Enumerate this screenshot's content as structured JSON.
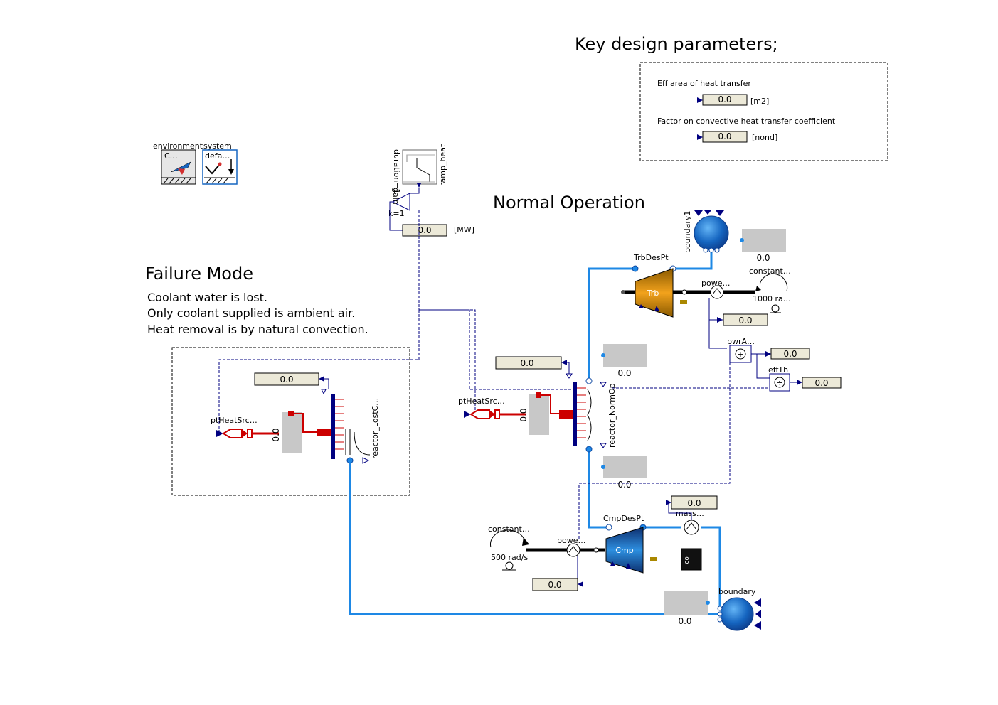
{
  "titles": {
    "key_params": "Key design parameters;",
    "normal": "Normal Operation",
    "failure": "Failure Mode"
  },
  "failure_notes": [
    "Coolant water is lost.",
    "Only coolant supplied is ambient air.",
    "Heat removal is by natural convection."
  ],
  "params": {
    "area_label": "Eff area of heat transfer",
    "area_value": "0.0",
    "area_unit": "[m2]",
    "factor_label": "Factor on convective heat transfer coefficient",
    "factor_value": "0.0",
    "factor_unit": "[nond]"
  },
  "components": {
    "environment": "environment",
    "system": "system",
    "env_icon": "C…",
    "sys_icon": "defa…",
    "ramp": "ramp_heat",
    "ramp_param": "duration=1",
    "gain": "gain",
    "gain_param": "k=1",
    "heat_unit": "[MW]",
    "boundary1": "boundary1",
    "boundary": "boundary",
    "trb_despt": "TrbDesPt",
    "trb": "Trb",
    "cmp_despt": "CmpDesPt",
    "cmp": "Cmp",
    "constant_top": "constant…",
    "constant_top_param": "1000 ra…",
    "constant_bot": "constant…",
    "constant_bot_param": "500 rad/s",
    "powe_top": "powe…",
    "powe_bot": "powe…",
    "pwrA": "pwrA…",
    "effTh": "effTh",
    "mass": "mass…",
    "pt_heat_1": "ptHeatSrc…",
    "pt_heat_2": "ptHeatSrc…",
    "reactor_lost": "reactor_LostC…",
    "reactor_norm": "reactor_NormOp"
  },
  "readouts": {
    "heat_mw": "0.0",
    "boundary1_val": "0.0",
    "trb_power": "0.0",
    "pwrA_out": "0.0",
    "effTh_out": "0.0",
    "reactor_norm_in": "0.0",
    "reactor_norm_top": "0.0",
    "reactor_norm_bot": "0.0",
    "reactor_lost_in": "0.0",
    "heat_lost_vert": "0.0",
    "heat_norm_vert": "0.0",
    "mass_flow": "0.0",
    "cmp_power": "0.0",
    "boundary_val": "0.0"
  },
  "colors": {
    "fluid": "#1e88e5",
    "signal": "#000080",
    "heat": "#cc0000",
    "turbine": "#e0900a",
    "compressor": "#1565c0"
  }
}
